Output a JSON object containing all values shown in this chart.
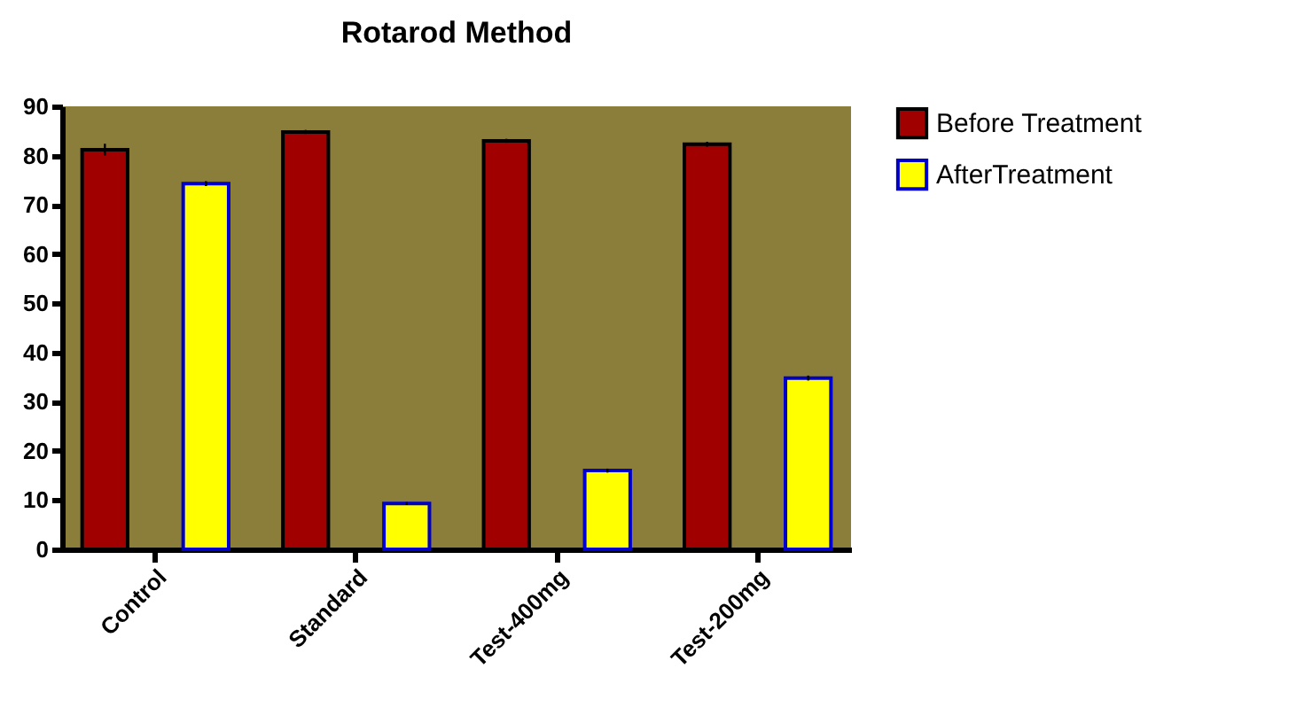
{
  "chart_data": {
    "type": "bar",
    "title": "Rotarod Method",
    "categories": [
      "Control",
      "Standard",
      "Test-400mg",
      "Test-200mg"
    ],
    "series": [
      {
        "name": "Before Treatment",
        "color": "#a00000",
        "values": [
          81.2,
          84.8,
          83,
          82.3
        ],
        "errors": [
          1.2,
          0.4,
          0.4,
          0.5
        ]
      },
      {
        "name": "AfterTreatment",
        "color": "#ffff00",
        "values": [
          74.3,
          9.3,
          16,
          34.8
        ],
        "errors": [
          0.5,
          0.3,
          0.4,
          0.5
        ]
      }
    ],
    "ylim": [
      0,
      90
    ],
    "yticks": [
      0,
      10,
      20,
      30,
      40,
      50,
      60,
      70,
      80,
      90
    ],
    "grid": false,
    "legend": "top right"
  }
}
